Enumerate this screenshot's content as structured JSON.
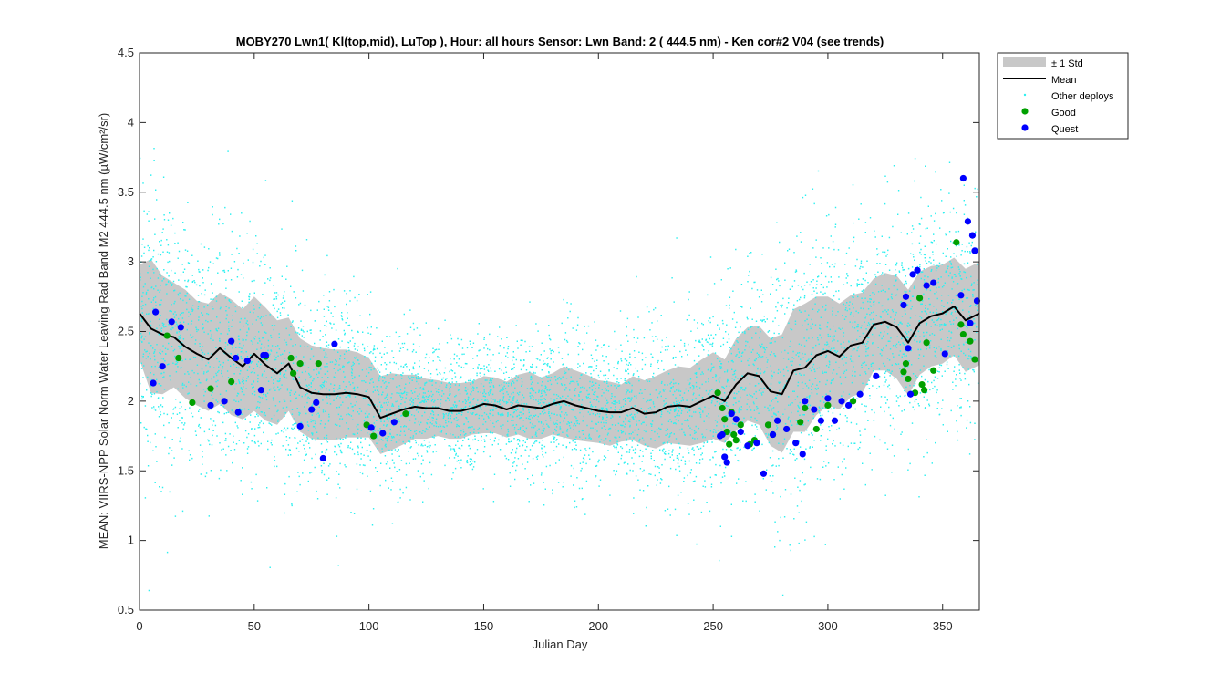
{
  "chart_data": {
    "type": "scatter",
    "title": "MOBY270   Lwn1( Kl(top,mid), LuTop ),    Hour: all hours  Sensor: Lwn Band: 2 ( 444.5 nm)  - Ken cor#2 V04 (see trends)",
    "xlabel": "Julian Day",
    "ylabel": "MEAN: VIIRS-NPP Solar Norm Water Leaving Rad Band M2 444.5 nm (µW/cm²/sr)",
    "xlim": [
      0,
      366
    ],
    "ylim": [
      0.5,
      4.5
    ],
    "x_ticks": [
      0,
      50,
      100,
      150,
      200,
      250,
      300,
      350
    ],
    "y_ticks": [
      0.5,
      1,
      1.5,
      2,
      2.5,
      3,
      3.5,
      4,
      4.5
    ],
    "grid": false,
    "legend_position": "outside-top-right",
    "legend": [
      {
        "key": "std",
        "label": "± 1 Std",
        "marker": "band",
        "color": "#c8c8c8"
      },
      {
        "key": "mean",
        "label": "Mean",
        "marker": "line",
        "color": "#000000"
      },
      {
        "key": "other",
        "label": "Other deploys",
        "marker": "dot",
        "color": "#2ef0f0"
      },
      {
        "key": "good",
        "label": "Good",
        "marker": "circle",
        "color": "#00a000"
      },
      {
        "key": "quest",
        "label": "Quest",
        "marker": "circle",
        "color": "#0000ff"
      }
    ],
    "mean_series": {
      "name": "Mean",
      "x": [
        0,
        5,
        10,
        15,
        20,
        25,
        30,
        35,
        40,
        45,
        50,
        55,
        60,
        65,
        70,
        75,
        80,
        85,
        90,
        95,
        100,
        105,
        110,
        115,
        120,
        125,
        130,
        135,
        140,
        145,
        150,
        155,
        160,
        165,
        170,
        175,
        180,
        185,
        190,
        195,
        200,
        205,
        210,
        215,
        220,
        225,
        230,
        235,
        240,
        245,
        250,
        255,
        260,
        265,
        270,
        275,
        280,
        285,
        290,
        295,
        300,
        305,
        310,
        315,
        320,
        325,
        330,
        335,
        340,
        345,
        350,
        355,
        360,
        366
      ],
      "y": [
        2.63,
        2.52,
        2.48,
        2.46,
        2.39,
        2.34,
        2.3,
        2.38,
        2.31,
        2.25,
        2.34,
        2.26,
        2.2,
        2.27,
        2.1,
        2.06,
        2.05,
        2.05,
        2.06,
        2.05,
        2.03,
        1.88,
        1.91,
        1.94,
        1.96,
        1.95,
        1.95,
        1.93,
        1.93,
        1.95,
        1.98,
        1.97,
        1.94,
        1.97,
        1.96,
        1.95,
        1.98,
        2.0,
        1.97,
        1.95,
        1.93,
        1.92,
        1.92,
        1.95,
        1.91,
        1.92,
        1.96,
        1.97,
        1.96,
        2.0,
        2.04,
        2.0,
        2.12,
        2.2,
        2.18,
        2.07,
        2.05,
        2.22,
        2.24,
        2.33,
        2.36,
        2.32,
        2.4,
        2.42,
        2.55,
        2.57,
        2.53,
        2.42,
        2.56,
        2.61,
        2.63,
        2.68,
        2.58,
        2.63
      ]
    },
    "std_band": {
      "name": "± 1 Std",
      "x": [
        0,
        5,
        10,
        15,
        20,
        25,
        30,
        35,
        40,
        45,
        50,
        55,
        60,
        65,
        70,
        75,
        80,
        85,
        90,
        95,
        100,
        105,
        110,
        115,
        120,
        125,
        130,
        135,
        140,
        145,
        150,
        155,
        160,
        165,
        170,
        175,
        180,
        185,
        190,
        195,
        200,
        205,
        210,
        215,
        220,
        225,
        230,
        235,
        240,
        245,
        250,
        255,
        260,
        265,
        270,
        275,
        280,
        285,
        290,
        295,
        300,
        305,
        310,
        315,
        320,
        325,
        330,
        335,
        340,
        345,
        350,
        355,
        360,
        366
      ],
      "upper": [
        2.98,
        3.02,
        2.9,
        2.85,
        2.8,
        2.72,
        2.7,
        2.78,
        2.73,
        2.66,
        2.75,
        2.67,
        2.58,
        2.6,
        2.45,
        2.4,
        2.38,
        2.37,
        2.37,
        2.35,
        2.31,
        2.18,
        2.2,
        2.19,
        2.19,
        2.16,
        2.15,
        2.13,
        2.13,
        2.14,
        2.18,
        2.17,
        2.14,
        2.19,
        2.21,
        2.17,
        2.2,
        2.25,
        2.22,
        2.19,
        2.15,
        2.14,
        2.12,
        2.18,
        2.15,
        2.18,
        2.22,
        2.25,
        2.24,
        2.3,
        2.35,
        2.3,
        2.45,
        2.53,
        2.54,
        2.45,
        2.48,
        2.66,
        2.7,
        2.75,
        2.75,
        2.7,
        2.76,
        2.78,
        2.88,
        2.92,
        2.9,
        2.8,
        2.93,
        2.97,
        2.98,
        3.03,
        2.95,
        3.0
      ],
      "lower": [
        2.3,
        2.06,
        2.05,
        2.1,
        2.02,
        1.97,
        1.93,
        1.98,
        1.9,
        1.87,
        1.93,
        1.86,
        1.83,
        1.93,
        1.78,
        1.73,
        1.72,
        1.72,
        1.74,
        1.74,
        1.74,
        1.62,
        1.65,
        1.69,
        1.73,
        1.73,
        1.75,
        1.73,
        1.73,
        1.76,
        1.77,
        1.77,
        1.74,
        1.76,
        1.73,
        1.73,
        1.76,
        1.74,
        1.72,
        1.71,
        1.7,
        1.68,
        1.71,
        1.72,
        1.68,
        1.66,
        1.7,
        1.69,
        1.68,
        1.7,
        1.73,
        1.7,
        1.79,
        1.86,
        1.83,
        1.68,
        1.63,
        1.78,
        1.78,
        1.9,
        1.97,
        1.94,
        2.03,
        2.06,
        2.22,
        2.22,
        2.16,
        2.04,
        2.19,
        2.25,
        2.27,
        2.33,
        2.21,
        2.26
      ]
    },
    "good_points": {
      "name": "Good",
      "x": [
        12,
        17,
        23,
        31,
        40,
        55,
        66,
        67,
        70,
        78,
        99,
        102,
        116,
        252,
        254,
        255,
        256,
        257,
        258,
        259,
        260,
        262,
        266,
        268,
        274,
        276,
        288,
        290,
        295,
        300,
        311,
        333,
        334,
        335,
        338,
        340,
        341,
        342,
        343,
        346,
        356,
        358,
        359,
        362,
        364
      ],
      "y": [
        2.47,
        2.31,
        1.99,
        2.09,
        2.14,
        2.32,
        2.31,
        2.2,
        2.27,
        2.27,
        1.83,
        1.75,
        1.91,
        2.06,
        1.95,
        1.87,
        1.78,
        1.69,
        1.92,
        1.76,
        1.72,
        1.83,
        1.69,
        1.72,
        1.83,
        1.76,
        1.85,
        1.95,
        1.8,
        1.97,
        2.0,
        2.21,
        2.27,
        2.16,
        2.06,
        2.74,
        2.12,
        2.08,
        2.42,
        2.22,
        3.14,
        2.55,
        2.48,
        2.43,
        2.3
      ]
    },
    "quest_points": {
      "name": "Quest",
      "x": [
        6,
        7,
        10,
        14,
        18,
        31,
        37,
        40,
        42,
        43,
        47,
        53,
        54,
        55,
        70,
        75,
        77,
        80,
        85,
        101,
        106,
        111,
        253,
        254,
        255,
        256,
        258,
        260,
        262,
        265,
        269,
        272,
        276,
        278,
        282,
        286,
        289,
        290,
        294,
        297,
        300,
        303,
        306,
        309,
        314,
        321,
        333,
        334,
        335,
        336,
        337,
        339,
        343,
        346,
        351,
        358,
        359,
        361,
        362,
        363,
        364,
        365
      ],
      "y": [
        2.13,
        2.64,
        2.25,
        2.57,
        2.53,
        1.97,
        2.0,
        2.43,
        2.31,
        1.92,
        2.29,
        2.08,
        2.33,
        2.33,
        1.82,
        1.94,
        1.99,
        1.59,
        2.41,
        1.81,
        1.77,
        1.85,
        1.75,
        1.76,
        1.6,
        1.56,
        1.91,
        1.87,
        1.78,
        1.68,
        1.7,
        1.48,
        1.76,
        1.86,
        1.8,
        1.7,
        1.62,
        2.0,
        1.94,
        1.86,
        2.02,
        1.86,
        2.0,
        1.97,
        2.05,
        2.18,
        2.69,
        2.75,
        2.38,
        2.05,
        2.91,
        2.94,
        2.83,
        2.85,
        2.34,
        2.76,
        3.6,
        3.29,
        2.56,
        3.19,
        3.08,
        2.72
      ]
    },
    "other_deploys_note_count": 6000
  }
}
